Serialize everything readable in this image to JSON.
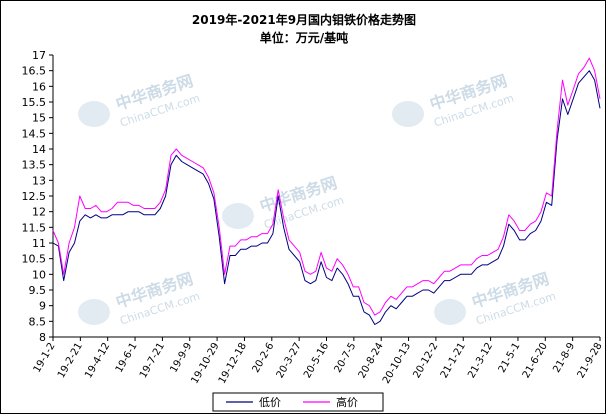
{
  "chart_data": {
    "type": "line",
    "title": "2019年-2021年9月国内钼铁价格走势图",
    "subtitle": "单位：万元/基吨",
    "y_ticks": [
      "8",
      "8.5",
      "9",
      "9.5",
      "10",
      "10.5",
      "11",
      "11.5",
      "12",
      "12.5",
      "13",
      "13.5",
      "14",
      "14.5",
      "15",
      "15.5",
      "16",
      "16.5",
      "17"
    ],
    "ylim": [
      8,
      17
    ],
    "x_ticks": [
      "19-1-2",
      "19-2-21",
      "19-4-12",
      "19-6-1",
      "19-7-21",
      "19-9-9",
      "19-10-29",
      "19-12-18",
      "20-2-6",
      "20-3-27",
      "20-5-16",
      "20-7-5",
      "20-8-24",
      "20-10-13",
      "20-12-2",
      "21-1-21",
      "21-3-12",
      "21-5-1",
      "21-6-20",
      "21-8-9",
      "21-9-28"
    ],
    "legend_position": "bottom",
    "grid": false,
    "series": [
      {
        "name": "低价",
        "color": "#000080",
        "values": [
          11.0,
          10.9,
          9.8,
          10.7,
          11.0,
          11.7,
          11.9,
          11.8,
          11.9,
          11.8,
          11.8,
          11.9,
          11.9,
          11.9,
          12.0,
          12.0,
          12.0,
          11.9,
          11.9,
          11.9,
          12.1,
          12.5,
          13.5,
          13.8,
          13.6,
          13.5,
          13.4,
          13.3,
          13.2,
          12.9,
          12.4,
          11.2,
          9.7,
          10.6,
          10.6,
          10.8,
          10.8,
          10.9,
          10.9,
          11.0,
          11.0,
          11.3,
          12.5,
          11.5,
          10.8,
          10.6,
          10.4,
          9.8,
          9.7,
          9.8,
          10.4,
          9.9,
          9.8,
          10.2,
          10.0,
          9.7,
          9.3,
          9.3,
          8.8,
          8.7,
          8.4,
          8.5,
          8.8,
          9.0,
          8.9,
          9.1,
          9.3,
          9.3,
          9.4,
          9.5,
          9.5,
          9.4,
          9.6,
          9.8,
          9.8,
          9.9,
          10.0,
          10.0,
          10.0,
          10.2,
          10.3,
          10.3,
          10.4,
          10.5,
          10.9,
          11.6,
          11.4,
          11.1,
          11.1,
          11.3,
          11.4,
          11.7,
          12.3,
          12.2,
          14.3,
          15.6,
          15.1,
          15.6,
          16.1,
          16.3,
          16.5,
          16.2,
          15.3
        ]
      },
      {
        "name": "高价",
        "color": "#ff00ff",
        "values": [
          11.4,
          11.0,
          10.0,
          11.0,
          11.5,
          12.5,
          12.1,
          12.1,
          12.2,
          12.0,
          12.0,
          12.1,
          12.3,
          12.3,
          12.3,
          12.2,
          12.2,
          12.1,
          12.1,
          12.1,
          12.3,
          12.7,
          13.8,
          14.0,
          13.8,
          13.7,
          13.6,
          13.5,
          13.4,
          13.1,
          12.6,
          11.5,
          10.0,
          10.9,
          10.9,
          11.1,
          11.1,
          11.2,
          11.2,
          11.3,
          11.3,
          11.6,
          12.7,
          11.8,
          11.1,
          10.9,
          10.7,
          10.1,
          10.0,
          10.1,
          10.7,
          10.2,
          10.1,
          10.5,
          10.3,
          10.0,
          9.6,
          9.6,
          9.1,
          9.0,
          8.7,
          8.8,
          9.1,
          9.3,
          9.2,
          9.4,
          9.6,
          9.6,
          9.7,
          9.8,
          9.8,
          9.7,
          9.9,
          10.1,
          10.1,
          10.2,
          10.3,
          10.3,
          10.3,
          10.5,
          10.6,
          10.6,
          10.7,
          10.8,
          11.2,
          11.9,
          11.7,
          11.4,
          11.4,
          11.6,
          11.7,
          12.0,
          12.6,
          12.5,
          14.6,
          16.2,
          15.4,
          15.9,
          16.4,
          16.6,
          16.9,
          16.5,
          15.6
        ]
      }
    ]
  },
  "watermark": {
    "cn": "中华商务网",
    "en": "ChinaCCM.com"
  }
}
